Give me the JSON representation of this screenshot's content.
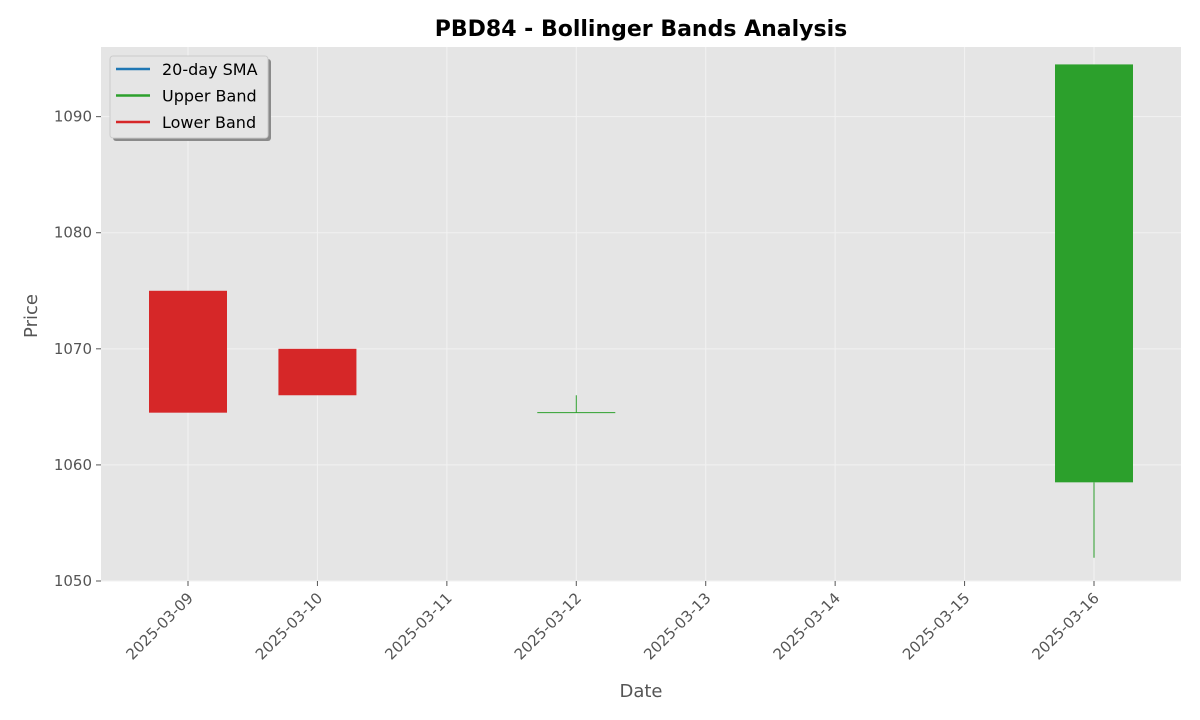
{
  "chart_data": {
    "type": "candlestick",
    "title": "PBD84 - Bollinger Bands Analysis",
    "xlabel": "Date",
    "ylabel": "Price",
    "ylim": [
      1050,
      1096
    ],
    "yticks": [
      1050,
      1060,
      1070,
      1080,
      1090
    ],
    "categories": [
      "2025-03-09",
      "2025-03-10",
      "2025-03-11",
      "2025-03-12",
      "2025-03-13",
      "2025-03-14",
      "2025-03-15",
      "2025-03-16"
    ],
    "candles": [
      {
        "date": "2025-03-09",
        "open": 1075,
        "close": 1064.5,
        "high": 1075,
        "low": 1064.5
      },
      {
        "date": "2025-03-10",
        "open": 1070,
        "close": 1066,
        "high": 1070,
        "low": 1066
      },
      {
        "date": "2025-03-12",
        "open": 1064.5,
        "close": 1064.5,
        "high": 1066,
        "low": 1064.5
      },
      {
        "date": "2025-03-16",
        "open": 1058.5,
        "close": 1094.5,
        "high": 1094.5,
        "low": 1052
      }
    ],
    "legend": {
      "position": "top-left",
      "items": [
        {
          "name": "20-day SMA",
          "color": "#1f77b4"
        },
        {
          "name": "Upper Band",
          "color": "#2ca02c"
        },
        {
          "name": "Lower Band",
          "color": "#d62728"
        }
      ]
    },
    "grid": true,
    "colors": {
      "up": "#2ca02c",
      "down": "#d62728",
      "plot_bg": "#e5e5e5",
      "grid": "#f2f2f2"
    }
  }
}
